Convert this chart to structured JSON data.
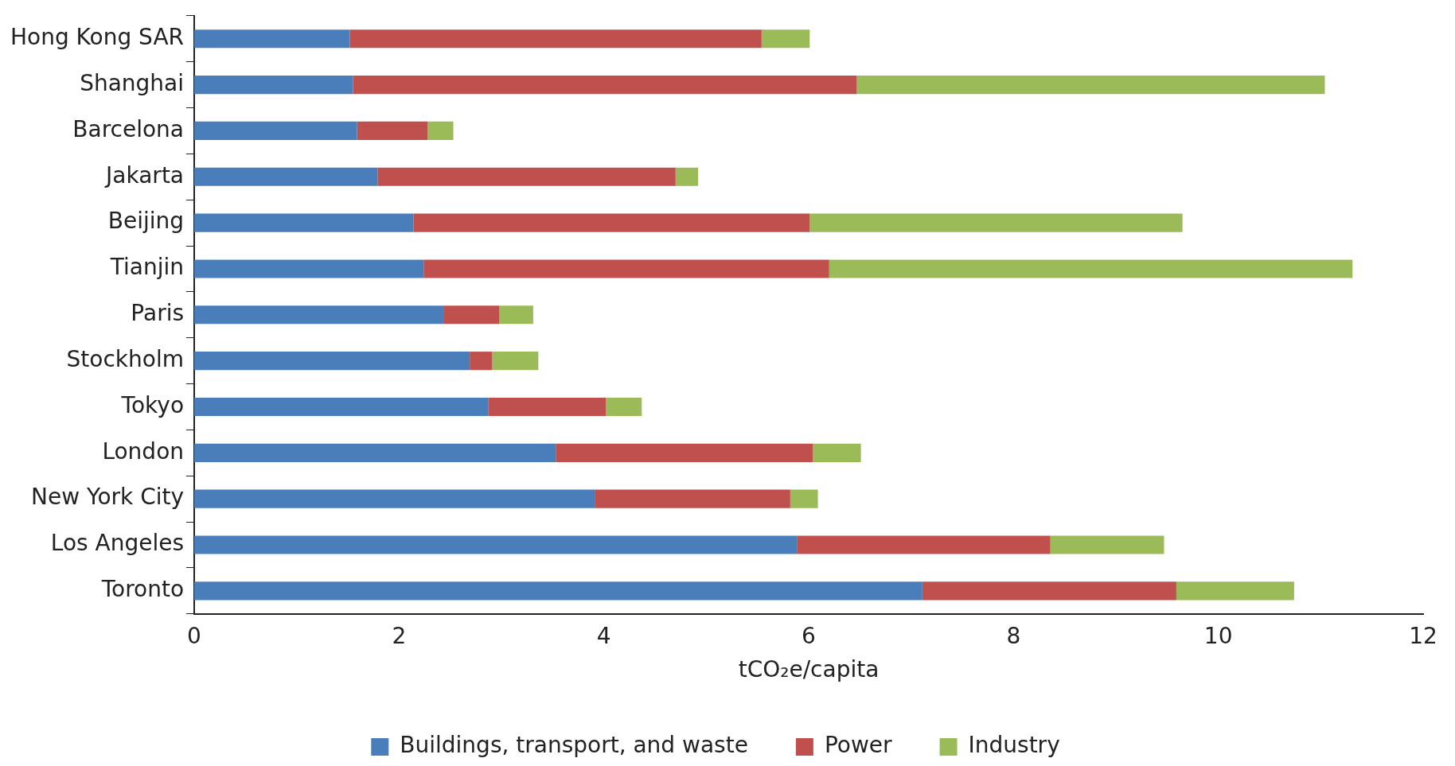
{
  "chart_data": {
    "type": "bar",
    "orientation": "horizontal",
    "stacked": true,
    "xlabel": "tCO₂e/capita",
    "categories": [
      "Hong Kong SAR",
      "Shanghai",
      "Barcelona",
      "Jakarta",
      "Beijing",
      "Tianjin",
      "Paris",
      "Stockholm",
      "Tokyo",
      "London",
      "New York City",
      "Los Angeles",
      "Toronto"
    ],
    "series": [
      {
        "name": "Buildings, transport, and waste",
        "color": "#4a7ebb",
        "values": [
          1.52,
          1.55,
          1.59,
          1.79,
          2.14,
          2.24,
          2.44,
          2.69,
          2.87,
          3.53,
          3.91,
          5.89,
          7.11
        ]
      },
      {
        "name": "Power",
        "color": "#c0504d",
        "values": [
          4.02,
          4.92,
          0.69,
          2.91,
          3.87,
          3.96,
          0.54,
          0.22,
          1.15,
          2.51,
          1.91,
          2.47,
          2.48
        ]
      },
      {
        "name": "Industry",
        "color": "#9bbb59",
        "values": [
          0.47,
          4.57,
          0.25,
          0.22,
          3.64,
          5.11,
          0.33,
          0.45,
          0.35,
          0.47,
          0.27,
          1.11,
          1.15
        ]
      }
    ],
    "xlim": [
      0,
      12
    ],
    "xticks": [
      0,
      2,
      4,
      6,
      8,
      10,
      12
    ],
    "grid": false,
    "legend": "bottom"
  }
}
